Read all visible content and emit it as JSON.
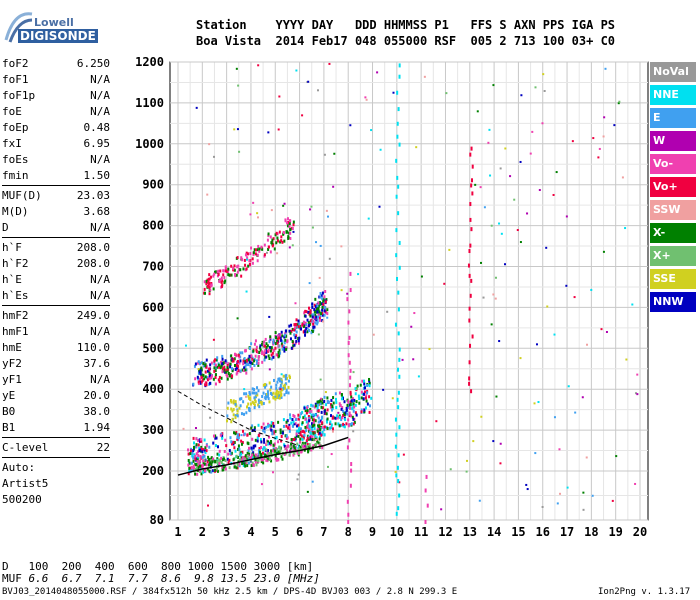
{
  "logo": {
    "line1": "Lowell",
    "line2": "DIGISONDE"
  },
  "header": {
    "line1": "Station    YYYY DAY   DDD HHMMSS P1   FFS S AXN PPS IGA PS",
    "line2": "Boa Vista  2014 Feb17 048 055000 RSF  005 2 713 100 03+ C0"
  },
  "params": [
    {
      "label": "foF2",
      "value": "6.250"
    },
    {
      "label": "foF1",
      "value": "N/A"
    },
    {
      "label": "foF1p",
      "value": "N/A"
    },
    {
      "label": "foE",
      "value": "N/A"
    },
    {
      "label": "foEp",
      "value": "0.48"
    },
    {
      "label": "fxI",
      "value": "6.95"
    },
    {
      "label": "foEs",
      "value": "N/A"
    },
    {
      "label": "fmin",
      "value": "1.50"
    },
    {
      "label": "MUF(D)",
      "value": "23.03"
    },
    {
      "label": "M(D)",
      "value": "3.68"
    },
    {
      "label": "D",
      "value": "N/A"
    },
    {
      "label": "h`F",
      "value": "208.0"
    },
    {
      "label": "h`F2",
      "value": "208.0"
    },
    {
      "label": "h`E",
      "value": "N/A"
    },
    {
      "label": "h`Es",
      "value": "N/A"
    },
    {
      "label": "hmF2",
      "value": "249.0"
    },
    {
      "label": "hmF1",
      "value": "N/A"
    },
    {
      "label": "hmE",
      "value": "110.0"
    },
    {
      "label": "yF2",
      "value": "37.6"
    },
    {
      "label": "yF1",
      "value": "N/A"
    },
    {
      "label": "yE",
      "value": "20.0"
    },
    {
      "label": "B0",
      "value": "38.0"
    },
    {
      "label": "B1",
      "value": "1.94"
    },
    {
      "label": "C-level",
      "value": "22"
    }
  ],
  "autoscale": {
    "line1": "Auto:",
    "line2": "Artist5",
    "line3": "500200"
  },
  "legend": [
    {
      "label": "NoVal",
      "color": "#999999"
    },
    {
      "label": "NNE",
      "color": "#00e0f0"
    },
    {
      "label": "E",
      "color": "#40a0f0"
    },
    {
      "label": "W",
      "color": "#b000b0"
    },
    {
      "label": "Vo-",
      "color": "#f040b0"
    },
    {
      "label": "Vo+",
      "color": "#f00040"
    },
    {
      "label": "SSW",
      "color": "#f0a0a0"
    },
    {
      "label": "X-",
      "color": "#008000"
    },
    {
      "label": "X+",
      "color": "#70c070"
    },
    {
      "label": "SSE",
      "color": "#d0d020"
    },
    {
      "label": "NNW",
      "color": "#0000c0"
    }
  ],
  "footer": {
    "d_label": "D",
    "d_values": "100  200  400  600  800 1000 1500 3000 [km]",
    "muf_label": "MUF",
    "muf_values": "6.6  6.7  7.1  7.7  8.6  9.8 13.5 23.0 [MHz]",
    "file": "BVJ03_2014048055000.RSF / 384fx512h 50 kHz 2.5 km / DPS-4D BVJ03 003 / 2.8 N 299.3 E",
    "version": "Ion2Png v. 1.3.17"
  },
  "chart_data": {
    "type": "scatter",
    "xlim": [
      1,
      20
    ],
    "ylim": [
      80,
      1200
    ],
    "xticks": [
      "1",
      "2",
      "3",
      "4",
      "5",
      "6",
      "7",
      "8",
      "9",
      "10",
      "11",
      "12",
      "13",
      "14",
      "15",
      "16",
      "17",
      "18",
      "19",
      "20"
    ],
    "yticks": [
      "80",
      "200",
      "300",
      "400",
      "500",
      "600",
      "700",
      "800",
      "900",
      "1000",
      "1100",
      "1200"
    ],
    "traces": [
      {
        "name": "F2 O-trace",
        "points": [
          [
            1.5,
            212
          ],
          [
            2,
            215
          ],
          [
            3,
            225
          ],
          [
            4,
            240
          ],
          [
            5,
            255
          ],
          [
            6,
            280
          ],
          [
            6.5,
            300
          ],
          [
            7,
            310
          ],
          [
            8,
            330
          ],
          [
            8.8,
            360
          ]
        ]
      },
      {
        "name": "F2 X-trace",
        "points": [
          [
            1.4,
            205
          ],
          [
            2.5,
            210
          ],
          [
            4,
            222
          ],
          [
            5,
            236
          ],
          [
            6,
            250
          ],
          [
            6.8,
            265
          ]
        ]
      },
      {
        "name": "2nd hop",
        "points": [
          [
            1.7,
            420
          ],
          [
            2.5,
            430
          ],
          [
            3.5,
            450
          ],
          [
            4.5,
            480
          ],
          [
            5.5,
            510
          ],
          [
            6.5,
            560
          ],
          [
            7,
            600
          ]
        ]
      },
      {
        "name": "3rd hop",
        "points": [
          [
            2,
            640
          ],
          [
            3,
            670
          ],
          [
            4,
            710
          ],
          [
            5,
            760
          ],
          [
            5.7,
            790
          ]
        ]
      },
      {
        "name": "Es",
        "points": [
          [
            3,
            330
          ],
          [
            4,
            360
          ],
          [
            5,
            390
          ],
          [
            5.5,
            400
          ]
        ]
      }
    ],
    "profile_dashed": [
      [
        1,
        395
      ],
      [
        2,
        360
      ],
      [
        3,
        330
      ],
      [
        4,
        300
      ],
      [
        5,
        280
      ],
      [
        6,
        262
      ]
    ],
    "profile_solid": [
      [
        1,
        190
      ],
      [
        2,
        205
      ],
      [
        3,
        215
      ],
      [
        4,
        228
      ],
      [
        5,
        240
      ],
      [
        6,
        250
      ],
      [
        7,
        262
      ],
      [
        8,
        282
      ]
    ]
  }
}
